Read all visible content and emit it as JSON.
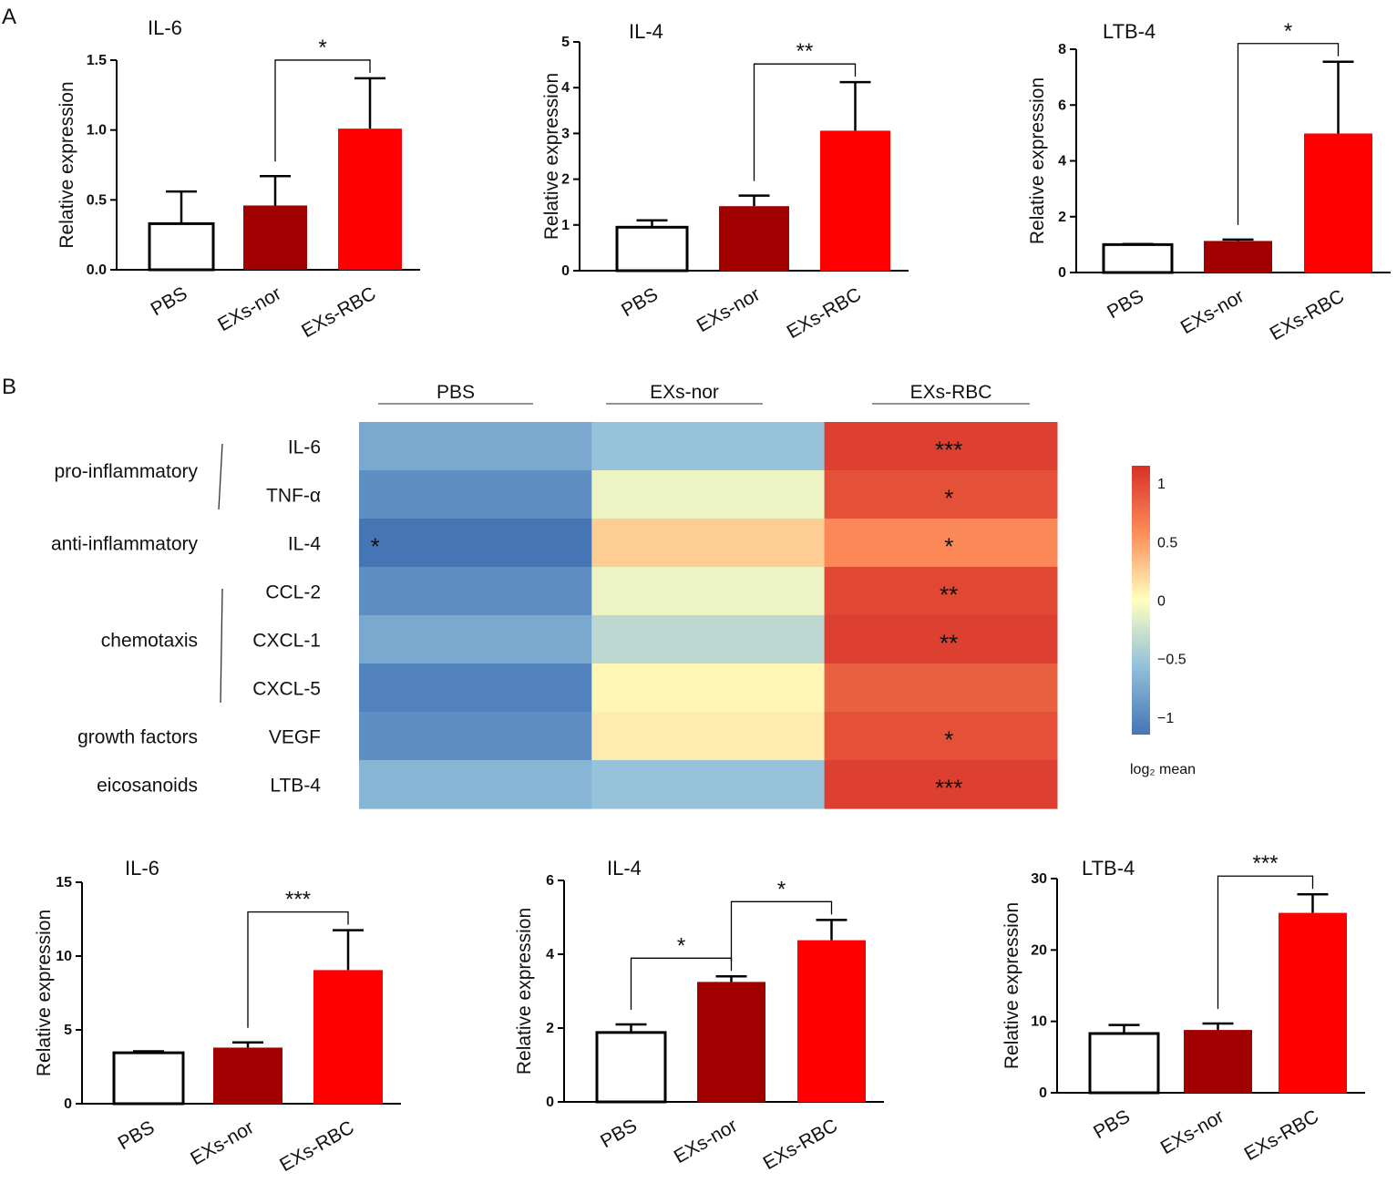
{
  "panel_labels": [
    "A",
    "B"
  ],
  "colors": {
    "pbs": "#ffffff",
    "nor": "#a00000",
    "rbc": "#ff0000",
    "axis": "#000000"
  },
  "chart_data": [
    {
      "id": "a-il6",
      "type": "bar",
      "title": "IL-6",
      "ylabel": "Relative expression",
      "categories": [
        "PBS",
        "EXs-nor",
        "EXs-RBC"
      ],
      "values": [
        0.33,
        0.46,
        1.01
      ],
      "errors": [
        0.23,
        0.21,
        0.36
      ],
      "ylim": [
        0,
        1.5
      ],
      "yticks": [
        "0.0",
        "0.5",
        "1.0",
        "1.5"
      ],
      "ytick_values": [
        0,
        0.5,
        1.0,
        1.5
      ],
      "brackets": [
        {
          "from": 1,
          "to": 2,
          "label": "*"
        }
      ]
    },
    {
      "id": "a-il4",
      "type": "bar",
      "title": "IL-4",
      "ylabel": "Relative expression",
      "categories": [
        "PBS",
        "EXs-nor",
        "EXs-RBC"
      ],
      "values": [
        0.95,
        1.41,
        3.06
      ],
      "errors": [
        0.15,
        0.23,
        1.06
      ],
      "ylim": [
        0,
        5
      ],
      "yticks": [
        "0",
        "1",
        "2",
        "3",
        "4",
        "5"
      ],
      "ytick_values": [
        0,
        1,
        2,
        3,
        4,
        5
      ],
      "brackets": [
        {
          "from": 1,
          "to": 2,
          "label": "**"
        }
      ]
    },
    {
      "id": "a-ltb4",
      "type": "bar",
      "title": "LTB-4",
      "ylabel": "Relative expression",
      "categories": [
        "PBS",
        "EXs-nor",
        "EXs-RBC"
      ],
      "values": [
        1.0,
        1.13,
        4.98
      ],
      "errors": [
        0.02,
        0.05,
        2.57
      ],
      "ylim": [
        0,
        8
      ],
      "yticks": [
        "0",
        "2",
        "4",
        "6",
        "8"
      ],
      "ytick_values": [
        0,
        2,
        4,
        6,
        8
      ],
      "brackets": [
        {
          "from": 1,
          "to": 2,
          "label": "*"
        }
      ]
    },
    {
      "id": "heatmap",
      "type": "heatmap",
      "columns": [
        "PBS",
        "EXs-nor",
        "EXs-RBC"
      ],
      "rows": [
        "IL-6",
        "TNF-α",
        "IL-4",
        "CCL-2",
        "CXCL-1",
        "CXCL-5",
        "VEGF",
        "LTB-4"
      ],
      "groups": [
        {
          "label": "pro-inflammatory",
          "first_row": 0,
          "last_row": 1,
          "bracket": true
        },
        {
          "label": "anti-inflammatory",
          "first_row": 2,
          "last_row": 2,
          "bracket": false
        },
        {
          "label": "chemotaxis",
          "first_row": 3,
          "last_row": 5,
          "bracket": true
        },
        {
          "label": "growth factors",
          "first_row": 6,
          "last_row": 6,
          "bracket": false
        },
        {
          "label": "eicosanoids",
          "first_row": 7,
          "last_row": 7,
          "bracket": false
        }
      ],
      "values": [
        [
          -0.75,
          -0.55,
          1.05
        ],
        [
          -0.95,
          -0.1,
          0.95
        ],
        [
          -1.15,
          0.25,
          0.6
        ],
        [
          -0.95,
          -0.1,
          1.0
        ],
        [
          -0.75,
          -0.35,
          1.05
        ],
        [
          -1.05,
          0.05,
          0.85
        ],
        [
          -0.95,
          0.1,
          0.95
        ],
        [
          -0.65,
          -0.55,
          1.05
        ]
      ],
      "significance": [
        [
          "",
          "",
          "***"
        ],
        [
          "",
          "",
          "*"
        ],
        [
          "*",
          "",
          "*"
        ],
        [
          "",
          "",
          "**"
        ],
        [
          "",
          "",
          "**"
        ],
        [
          "",
          "",
          ""
        ],
        [
          "",
          "",
          "*"
        ],
        [
          "",
          "",
          "***"
        ]
      ],
      "colorbar": {
        "range": [
          -1.15,
          1.15
        ],
        "ticks": [
          "1",
          "0.5",
          "0",
          "−0.5",
          "−1"
        ],
        "tick_values": [
          1,
          0.5,
          0,
          -0.5,
          -1
        ],
        "label": "log₂ mean"
      }
    },
    {
      "id": "b-il6",
      "type": "bar",
      "title": "IL-6",
      "ylabel": "Relative expression",
      "categories": [
        "PBS",
        "EXs-nor",
        "EXs-RBC"
      ],
      "values": [
        3.45,
        3.8,
        9.05
      ],
      "errors": [
        0.1,
        0.35,
        2.7
      ],
      "ylim": [
        0,
        15
      ],
      "yticks": [
        "0",
        "5",
        "10",
        "15"
      ],
      "ytick_values": [
        0,
        5,
        10,
        15
      ],
      "brackets": [
        {
          "from": 1,
          "to": 2,
          "label": "***"
        }
      ]
    },
    {
      "id": "b-il4",
      "type": "bar",
      "title": "IL-4",
      "ylabel": "Relative expression",
      "categories": [
        "PBS",
        "EXs-nor",
        "EXs-RBC"
      ],
      "values": [
        1.88,
        3.25,
        4.38
      ],
      "errors": [
        0.22,
        0.15,
        0.55
      ],
      "ylim": [
        0,
        6
      ],
      "yticks": [
        "0",
        "2",
        "4",
        "6"
      ],
      "ytick_values": [
        0,
        2,
        4,
        6
      ],
      "brackets": [
        {
          "from": 0,
          "to": 1,
          "label": "*"
        },
        {
          "from": 1,
          "to": 2,
          "label": "*"
        }
      ]
    },
    {
      "id": "b-ltb4",
      "type": "bar",
      "title": "LTB-4",
      "ylabel": "Relative expression",
      "categories": [
        "PBS",
        "EXs-nor",
        "EXs-RBC"
      ],
      "values": [
        8.3,
        8.8,
        25.2
      ],
      "errors": [
        1.2,
        0.9,
        2.6
      ],
      "ylim": [
        0,
        30
      ],
      "yticks": [
        "0",
        "10",
        "20",
        "30"
      ],
      "ytick_values": [
        0,
        10,
        20,
        30
      ],
      "brackets": [
        {
          "from": 1,
          "to": 2,
          "label": "***"
        }
      ]
    }
  ]
}
